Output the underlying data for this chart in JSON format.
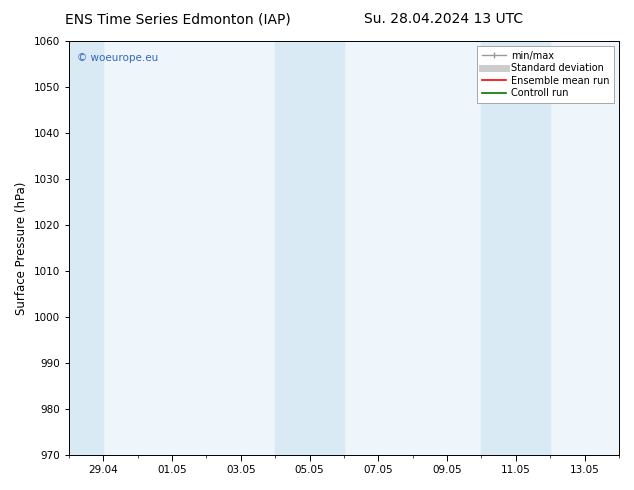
{
  "title_left": "ENS Time Series Edmonton (IAP)",
  "title_right": "Su. 28.04.2024 13 UTC",
  "ylabel": "Surface Pressure (hPa)",
  "ylim": [
    970,
    1060
  ],
  "yticks": [
    970,
    980,
    990,
    1000,
    1010,
    1020,
    1030,
    1040,
    1050,
    1060
  ],
  "xtick_labels": [
    "29.04",
    "01.05",
    "03.05",
    "05.05",
    "07.05",
    "09.05",
    "11.05",
    "13.05"
  ],
  "xtick_positions": [
    1,
    3,
    5,
    7,
    9,
    11,
    13,
    15
  ],
  "xlim": [
    0,
    16
  ],
  "shaded_bands": [
    {
      "x_start": 0,
      "x_end": 1,
      "color": "#daeaf5"
    },
    {
      "x_start": 6,
      "x_end": 8,
      "color": "#daeaf5"
    },
    {
      "x_start": 12,
      "x_end": 14,
      "color": "#daeaf5"
    }
  ],
  "plot_bg_color": "#eef5fb",
  "watermark_text": "© woeurope.eu",
  "watermark_color": "#3366cc",
  "background_color": "#ffffff",
  "legend_entries": [
    {
      "label": "min/max",
      "color": "#999999",
      "lw": 1.2
    },
    {
      "label": "Standard deviation",
      "color": "#cccccc",
      "lw": 5
    },
    {
      "label": "Ensemble mean run",
      "color": "#ff0000",
      "lw": 1.2
    },
    {
      "label": "Controll run",
      "color": "#007700",
      "lw": 1.2
    }
  ],
  "title_fontsize": 10,
  "tick_fontsize": 7.5,
  "legend_fontsize": 7,
  "ylabel_fontsize": 8.5
}
